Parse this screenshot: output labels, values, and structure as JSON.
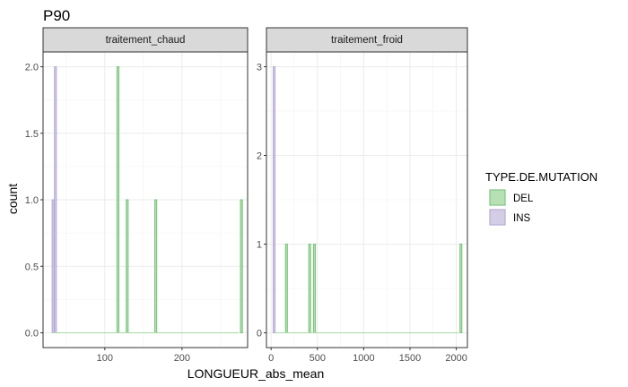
{
  "chart_data": {
    "type": "bar",
    "title": "P90",
    "xlabel": "LONGUEUR_abs_mean",
    "ylabel": "count",
    "legend": {
      "title": "TYPE.DE.MUTATION",
      "position": "right",
      "entries": [
        {
          "name": "DEL",
          "color": "#b7e0b4",
          "border": "#74c476"
        },
        {
          "name": "INS",
          "color": "#d4cde6",
          "border": "#b4a7d6"
        }
      ]
    },
    "grid": true,
    "facets": [
      {
        "label": "traitement_chaud",
        "xlim": [
          20,
          285
        ],
        "ylim": [
          0,
          2
        ],
        "xticks": [
          100,
          200
        ],
        "yticks": [
          0.0,
          0.5,
          1.0,
          1.5,
          2.0
        ],
        "ytick_labels": [
          "0.0",
          "0.5",
          "1.0",
          "1.5",
          "2.0"
        ],
        "bin_width": 2.5,
        "series": [
          {
            "name": "INS",
            "x": [
              33,
              36
            ],
            "values": [
              1,
              2
            ]
          },
          {
            "name": "DEL",
            "x": [
              117,
              129,
              166,
              277
            ],
            "values": [
              2,
              1,
              1,
              1
            ]
          }
        ]
      },
      {
        "label": "traitement_froid",
        "xlim": [
          -50,
          2120
        ],
        "ylim": [
          0,
          3
        ],
        "xticks": [
          0,
          500,
          1000,
          1500,
          2000
        ],
        "yticks": [
          0,
          1,
          2,
          3
        ],
        "ytick_labels": [
          "0",
          "1",
          "2",
          "3"
        ],
        "bin_width": 20,
        "series": [
          {
            "name": "INS",
            "x": [
              33
            ],
            "values": [
              3
            ]
          },
          {
            "name": "DEL",
            "x": [
              166,
              417,
              469,
              2050
            ],
            "values": [
              1,
              1,
              1,
              1
            ]
          }
        ]
      }
    ]
  }
}
